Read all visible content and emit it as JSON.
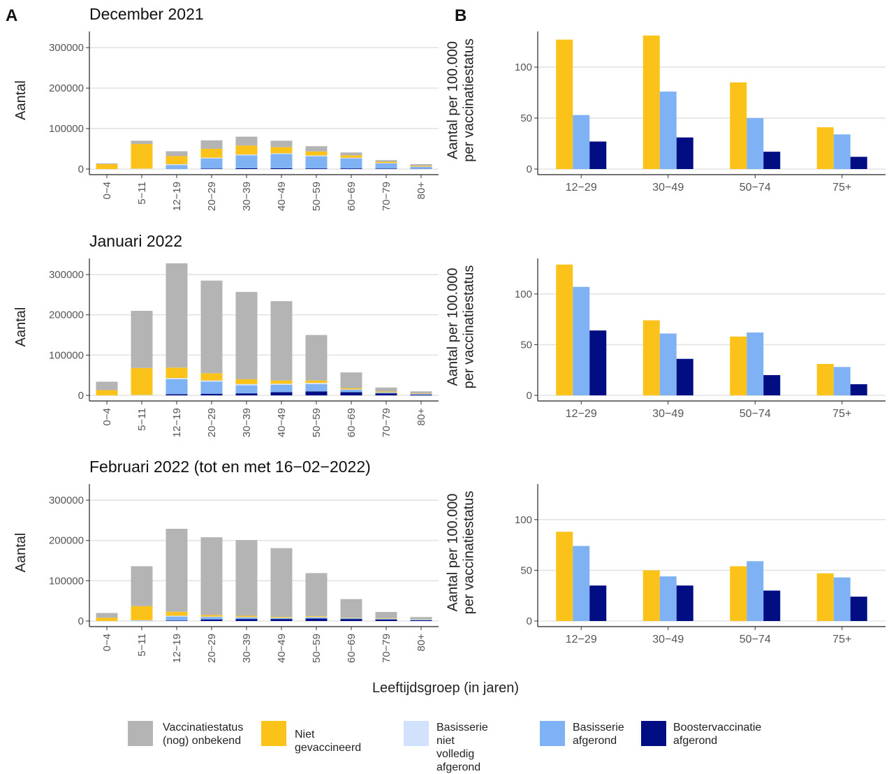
{
  "panel_labels": [
    "A",
    "B"
  ],
  "x_axis_title": "Leeftijdsgroep (in jaren)",
  "legend": [
    {
      "label": "Vaccinatiestatus\n(nog) onbekend",
      "color": "#b4b4b4"
    },
    {
      "label": "Niet gevaccineerd",
      "color": "#fbc319"
    },
    {
      "label": "Basisserie niet\nvolledig afgerond",
      "color": "#d2e2fd"
    },
    {
      "label": "Basisserie\nafgerond",
      "color": "#7fb2f4"
    },
    {
      "label": "Boostervaccinatie\nafgerond",
      "color": "#010d82"
    }
  ],
  "chart_data": [
    {
      "type": "bar",
      "stacked": true,
      "panel": "A",
      "title": "December 2021",
      "ylabel": "Aantal",
      "ylim": [
        0,
        340000
      ],
      "yticks": [
        0,
        100000,
        200000,
        300000
      ],
      "categories": [
        "0-4",
        "5-11",
        "12-19",
        "20-29",
        "30-39",
        "40-49",
        "50-59",
        "60-69",
        "70-79",
        "80+"
      ],
      "series": [
        {
          "name": "Boostervaccinatie afgerond",
          "values": [
            0,
            0,
            0,
            1000,
            2000,
            2000,
            1500,
            1500,
            1000,
            500
          ]
        },
        {
          "name": "Basisserie afgerond",
          "values": [
            0,
            0,
            10000,
            25000,
            32000,
            35000,
            30000,
            25000,
            13000,
            5000
          ]
        },
        {
          "name": "Basisserie niet volledig afgerond",
          "values": [
            0,
            1000,
            2000,
            2000,
            2000,
            2000,
            2000,
            1500,
            1000,
            500
          ]
        },
        {
          "name": "Niet gevaccineerd",
          "values": [
            12000,
            61000,
            20000,
            22000,
            22000,
            15000,
            10000,
            6000,
            3000,
            2000
          ]
        },
        {
          "name": "Vaccinatiestatus (nog) onbekend",
          "values": [
            2000,
            8000,
            12000,
            21000,
            22000,
            16000,
            13000,
            7000,
            4000,
            4000
          ]
        }
      ]
    },
    {
      "type": "bar",
      "panel": "B",
      "title": "",
      "ylabel": "Aantal per 100.000\nper vaccinatiestatus",
      "ylim": [
        0,
        135
      ],
      "yticks": [
        0,
        50,
        100
      ],
      "categories": [
        "12-29",
        "30-49",
        "50-74",
        "75+"
      ],
      "series": [
        {
          "name": "Niet gevaccineerd",
          "values": [
            127,
            131,
            85,
            41
          ]
        },
        {
          "name": "Basisserie afgerond",
          "values": [
            53,
            76,
            50,
            34
          ]
        },
        {
          "name": "Boostervaccinatie afgerond",
          "values": [
            27,
            31,
            17,
            12
          ]
        }
      ]
    },
    {
      "type": "bar",
      "stacked": true,
      "panel": "A",
      "title": "Januari 2022",
      "ylabel": "Aantal",
      "ylim": [
        0,
        340000
      ],
      "yticks": [
        0,
        100000,
        200000,
        300000
      ],
      "categories": [
        "0-4",
        "5-11",
        "12-19",
        "20-29",
        "30-39",
        "40-49",
        "50-59",
        "60-69",
        "70-79",
        "80+"
      ],
      "series": [
        {
          "name": "Boostervaccinatie afgerond",
          "values": [
            0,
            0,
            3000,
            4000,
            5000,
            8000,
            10000,
            8000,
            5000,
            2000
          ]
        },
        {
          "name": "Basisserie afgerond",
          "values": [
            0,
            0,
            37000,
            30000,
            20000,
            18000,
            18000,
            6000,
            2000,
            1000
          ]
        },
        {
          "name": "Basisserie niet volledig afgerond",
          "values": [
            0,
            1000,
            3000,
            3000,
            3000,
            3000,
            3000,
            1000,
            500,
            500
          ]
        },
        {
          "name": "Niet gevaccineerd",
          "values": [
            13000,
            67000,
            26000,
            18000,
            12000,
            8000,
            6000,
            3000,
            2000,
            1000
          ]
        },
        {
          "name": "Vaccinatiestatus (nog) onbekend",
          "values": [
            21000,
            142000,
            259000,
            230000,
            217000,
            197000,
            113000,
            39000,
            10000,
            5500
          ]
        }
      ]
    },
    {
      "type": "bar",
      "panel": "B",
      "title": "",
      "ylabel": "Aantal per 100.000\nper vaccinatiestatus",
      "ylim": [
        0,
        135
      ],
      "yticks": [
        0,
        50,
        100
      ],
      "categories": [
        "12-29",
        "30-49",
        "50-74",
        "75+"
      ],
      "series": [
        {
          "name": "Niet gevaccineerd",
          "values": [
            129,
            74,
            58,
            31
          ]
        },
        {
          "name": "Basisserie afgerond",
          "values": [
            107,
            61,
            62,
            28
          ]
        },
        {
          "name": "Boostervaccinatie afgerond",
          "values": [
            64,
            36,
            20,
            11
          ]
        }
      ]
    },
    {
      "type": "bar",
      "stacked": true,
      "panel": "A",
      "title": "Februari 2022 (tot en met 16−02−2022)",
      "ylabel": "Aantal",
      "ylim": [
        0,
        340000
      ],
      "yticks": [
        0,
        100000,
        200000,
        300000
      ],
      "categories": [
        "0-4",
        "5-11",
        "12-19",
        "20-29",
        "30-39",
        "40-49",
        "50-59",
        "60-69",
        "70-79",
        "80+"
      ],
      "series": [
        {
          "name": "Boostervaccinatie afgerond",
          "values": [
            0,
            0,
            1000,
            4000,
            5000,
            5000,
            6000,
            5000,
            4000,
            2000
          ]
        },
        {
          "name": "Basisserie afgerond",
          "values": [
            0,
            1000,
            10000,
            6000,
            4000,
            2000,
            3000,
            2000,
            1000,
            1000
          ]
        },
        {
          "name": "Basisserie niet volledig afgerond",
          "values": [
            0,
            1000,
            2000,
            1000,
            1000,
            1000,
            1000,
            500,
            500,
            500
          ]
        },
        {
          "name": "Niet gevaccineerd",
          "values": [
            8000,
            35000,
            10000,
            4000,
            3000,
            2000,
            2000,
            1000,
            1000,
            500
          ]
        },
        {
          "name": "Vaccinatiestatus (nog) onbekend",
          "values": [
            12000,
            99000,
            206000,
            193000,
            188000,
            171000,
            107000,
            46000,
            16000,
            6000
          ]
        }
      ]
    },
    {
      "type": "bar",
      "panel": "B",
      "title": "",
      "ylabel": "Aantal per 100.000\nper vaccinatiestatus",
      "ylim": [
        0,
        135
      ],
      "yticks": [
        0,
        50,
        100
      ],
      "categories": [
        "12-29",
        "30-49",
        "50-74",
        "75+"
      ],
      "series": [
        {
          "name": "Niet gevaccineerd",
          "values": [
            88,
            50,
            54,
            47
          ]
        },
        {
          "name": "Basisserie afgerond",
          "values": [
            74,
            44,
            59,
            43
          ]
        },
        {
          "name": "Boostervaccinatie afgerond",
          "values": [
            35,
            35,
            30,
            24
          ]
        }
      ]
    }
  ]
}
